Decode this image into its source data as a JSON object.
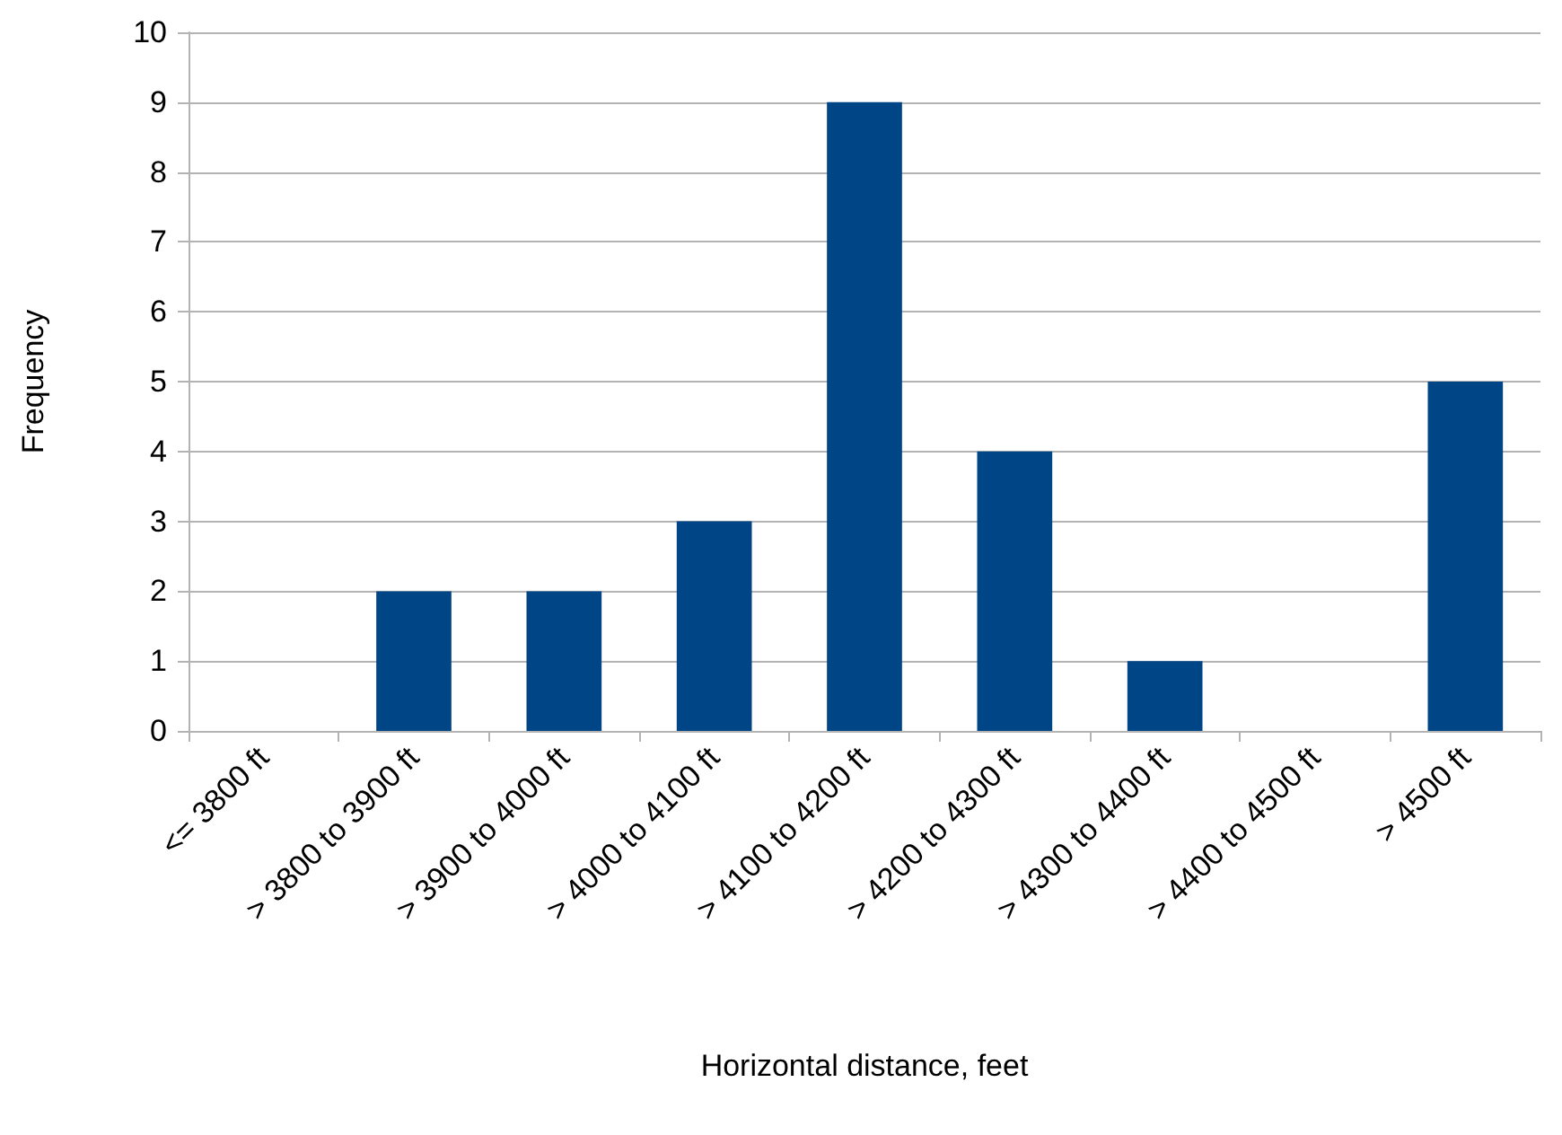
{
  "chart_data": {
    "type": "bar",
    "categories": [
      "<= 3800 ft",
      "> 3800 to 3900 ft",
      "> 3900 to 4000 ft",
      "> 4000 to 4100 ft",
      "> 4100 to 4200 ft",
      "> 4200 to 4300 ft",
      "> 4300 to 4400 ft",
      "> 4400 to 4500 ft",
      "> 4500 ft"
    ],
    "values": [
      0,
      2,
      2,
      3,
      9,
      4,
      1,
      0,
      5
    ],
    "color": "#004586",
    "xlabel": "Horizontal distance, feet",
    "ylabel": "Frequency",
    "ylim": [
      0,
      10
    ],
    "yticks": [
      0,
      1,
      2,
      3,
      4,
      5,
      6,
      7,
      8,
      9,
      10
    ],
    "grid": "y"
  }
}
